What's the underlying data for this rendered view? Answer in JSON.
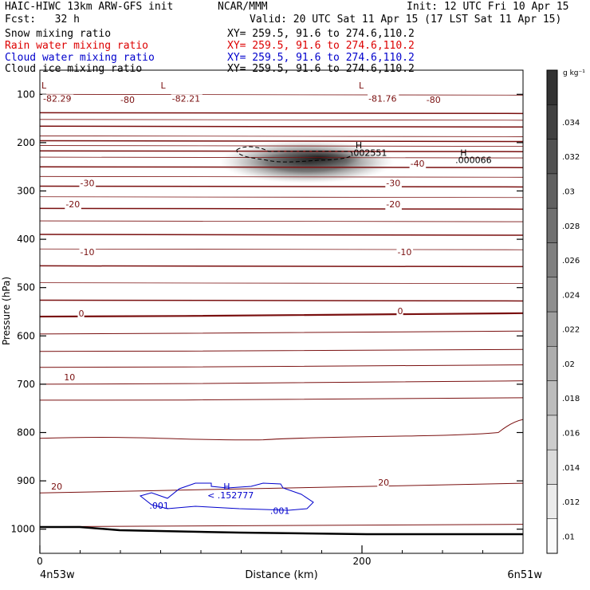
{
  "header": {
    "title_left": "HAIC-HIWC 13km ARW-GFS init",
    "org": "NCAR/MMM",
    "init": "Init: 12 UTC Fri 10 Apr 15",
    "fcst": "Fcst:   32 h",
    "valid": "Valid: 20 UTC Sat 11 Apr 15 (17 LST Sat 11 Apr 15)",
    "fields": [
      {
        "name": "Snow mixing ratio",
        "xy": "XY= 259.5, 91.6 to 274.6,110.2",
        "color": "#000000"
      },
      {
        "name": "Rain water mixing ratio",
        "xy": "XY= 259.5, 91.6 to 274.6,110.2",
        "color": "#dd0000"
      },
      {
        "name": "Cloud water mixing ratio",
        "xy": "XY= 259.5, 91.6 to 274.6,110.2",
        "color": "#0000cc"
      },
      {
        "name": "Cloud ice mixing ratio",
        "xy": "XY= 259.5, 91.6 to 274.6,110.2",
        "color": "#000000"
      }
    ]
  },
  "chart_data": {
    "type": "cross-section",
    "xlabel": "Distance (km)",
    "ylabel": "Pressure (hPa)",
    "xlim": [
      0,
      300
    ],
    "ylim": [
      1050,
      50
    ],
    "xticks": [
      0,
      200
    ],
    "yticks": [
      100,
      200,
      300,
      400,
      500,
      600,
      700,
      800,
      900,
      1000
    ],
    "x_end_labels": {
      "left": "4n53w",
      "right": "6n51w"
    },
    "colorbar": {
      "unit": "g kg⁻¹",
      "labels": [
        ".01",
        ".012",
        ".014",
        ".016",
        ".018",
        ".02",
        ".022",
        ".024",
        ".026",
        ".028",
        ".03",
        ".032",
        ".034"
      ],
      "range": [
        0.009,
        0.037
      ]
    },
    "temperature_labels": [
      {
        "text": "-82.29",
        "x": 2,
        "p": 115
      },
      {
        "text": "-80",
        "x": 50,
        "p": 118
      },
      {
        "text": "-82.21",
        "x": 82,
        "p": 115
      },
      {
        "text": "-81.76",
        "x": 204,
        "p": 115
      },
      {
        "text": "-80",
        "x": 240,
        "p": 118
      },
      {
        "text": "-40",
        "x": 230,
        "p": 250
      },
      {
        "text": "-30",
        "x": 25,
        "p": 290
      },
      {
        "text": "-30",
        "x": 215,
        "p": 290
      },
      {
        "text": "-20",
        "x": 16,
        "p": 334
      },
      {
        "text": "-20",
        "x": 215,
        "p": 334
      },
      {
        "text": "-10",
        "x": 25,
        "p": 433
      },
      {
        "text": "-10",
        "x": 222,
        "p": 433
      },
      {
        "text": "0",
        "x": 24,
        "p": 560
      },
      {
        "text": "0",
        "x": 222,
        "p": 555
      },
      {
        "text": "10",
        "x": 15,
        "p": 692
      },
      {
        "text": "20",
        "x": 7,
        "p": 918
      },
      {
        "text": "20",
        "x": 210,
        "p": 910
      }
    ],
    "extrema": [
      {
        "text": "L",
        "x": 1,
        "p": 88
      },
      {
        "text": "L",
        "x": 75,
        "p": 88
      },
      {
        "text": "L",
        "x": 198,
        "p": 88
      },
      {
        "text": "H",
        "x": 196,
        "p": 212
      },
      {
        "text": ".002551",
        "x": 193,
        "p": 227
      },
      {
        "text": "H",
        "x": 261,
        "p": 227
      },
      {
        "text": ".000066",
        "x": 258,
        "p": 242
      }
    ],
    "cloud_water": [
      {
        "text": "H",
        "x": 114,
        "p": 918
      },
      {
        "text": "< .152777",
        "x": 104,
        "p": 936
      },
      {
        "text": ".001",
        "x": 68,
        "p": 958
      },
      {
        "text": ".001",
        "x": 143,
        "p": 968
      }
    ],
    "cloud_ice_max": 0.036
  }
}
